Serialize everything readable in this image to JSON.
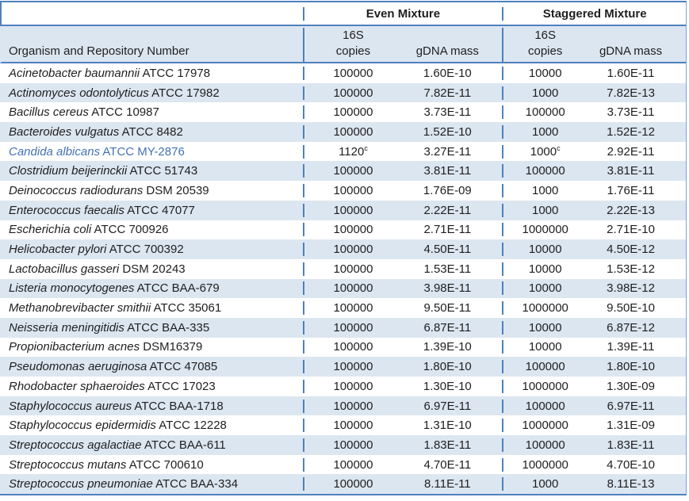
{
  "colors": {
    "border_blue": "#4f81bd",
    "band_blue": "#dce6f1",
    "text": "#1f1f1f",
    "highlight_text": "#4472b4"
  },
  "table": {
    "group_headers": {
      "even": "Even Mixture",
      "staggered": "Staggered Mixture"
    },
    "subheaders": {
      "organism": "Organism and Repository Number",
      "copies_top": "16S",
      "copies_bottom": "copies",
      "gdna": "gDNA mass"
    },
    "rows": [
      {
        "genus_species": "Acinetobacter baumannii",
        "repository": "ATCC 17978",
        "even_copies": "100000",
        "even_sup": "",
        "even_gdna": "1.60E-10",
        "stag_copies": "10000",
        "stag_sup": "",
        "stag_gdna": "1.60E-11",
        "highlight": false
      },
      {
        "genus_species": "Actinomyces odontolyticus",
        "repository": "ATCC 17982",
        "even_copies": "100000",
        "even_sup": "",
        "even_gdna": "7.82E-11",
        "stag_copies": "1000",
        "stag_sup": "",
        "stag_gdna": "7.82E-13",
        "highlight": false
      },
      {
        "genus_species": "Bacillus cereus",
        "repository": "ATCC 10987",
        "even_copies": "100000",
        "even_sup": "",
        "even_gdna": "3.73E-11",
        "stag_copies": "100000",
        "stag_sup": "",
        "stag_gdna": "3.73E-11",
        "highlight": false
      },
      {
        "genus_species": "Bacteroides vulgatus",
        "repository": "ATCC 8482",
        "even_copies": "100000",
        "even_sup": "",
        "even_gdna": "1.52E-10",
        "stag_copies": "1000",
        "stag_sup": "",
        "stag_gdna": "1.52E-12",
        "highlight": false
      },
      {
        "genus_species": "Candida albicans",
        "repository": "ATCC MY-2876",
        "even_copies": "1120",
        "even_sup": "c",
        "even_gdna": "3.27E-11",
        "stag_copies": "1000",
        "stag_sup": "c",
        "stag_gdna": "2.92E-11",
        "highlight": true
      },
      {
        "genus_species": "Clostridium beijerinckii",
        "repository": "ATCC 51743",
        "even_copies": "100000",
        "even_sup": "",
        "even_gdna": "3.81E-11",
        "stag_copies": "100000",
        "stag_sup": "",
        "stag_gdna": "3.81E-11",
        "highlight": false
      },
      {
        "genus_species": "Deinococcus radiodurans",
        "repository": "DSM 20539",
        "even_copies": "100000",
        "even_sup": "",
        "even_gdna": "1.76E-09",
        "stag_copies": "1000",
        "stag_sup": "",
        "stag_gdna": "1.76E-11",
        "highlight": false
      },
      {
        "genus_species": "Enterococcus faecalis",
        "repository": "ATCC 47077",
        "even_copies": "100000",
        "even_sup": "",
        "even_gdna": "2.22E-11",
        "stag_copies": "1000",
        "stag_sup": "",
        "stag_gdna": "2.22E-13",
        "highlight": false
      },
      {
        "genus_species": "Escherichia coli",
        "repository": "ATCC 700926",
        "even_copies": "100000",
        "even_sup": "",
        "even_gdna": "2.71E-11",
        "stag_copies": "1000000",
        "stag_sup": "",
        "stag_gdna": "2.71E-10",
        "highlight": false
      },
      {
        "genus_species": "Helicobacter pylori",
        "repository": "ATCC 700392",
        "even_copies": "100000",
        "even_sup": "",
        "even_gdna": "4.50E-11",
        "stag_copies": "10000",
        "stag_sup": "",
        "stag_gdna": "4.50E-12",
        "highlight": false
      },
      {
        "genus_species": "Lactobacillus gasseri",
        "repository": "DSM 20243",
        "even_copies": "100000",
        "even_sup": "",
        "even_gdna": "1.53E-11",
        "stag_copies": "10000",
        "stag_sup": "",
        "stag_gdna": "1.53E-12",
        "highlight": false
      },
      {
        "genus_species": "Listeria monocytogenes",
        "repository": "ATCC BAA-679",
        "even_copies": "100000",
        "even_sup": "",
        "even_gdna": "3.98E-11",
        "stag_copies": "10000",
        "stag_sup": "",
        "stag_gdna": "3.98E-12",
        "highlight": false
      },
      {
        "genus_species": "Methanobrevibacter smithii",
        "repository": "ATCC 35061",
        "even_copies": "100000",
        "even_sup": "",
        "even_gdna": "9.50E-11",
        "stag_copies": "1000000",
        "stag_sup": "",
        "stag_gdna": "9.50E-10",
        "highlight": false
      },
      {
        "genus_species": "Neisseria meningitidis",
        "repository": "ATCC BAA-335",
        "even_copies": "100000",
        "even_sup": "",
        "even_gdna": "6.87E-11",
        "stag_copies": "10000",
        "stag_sup": "",
        "stag_gdna": "6.87E-12",
        "highlight": false
      },
      {
        "genus_species": "Propionibacterium acnes",
        "repository": "DSM16379",
        "even_copies": "100000",
        "even_sup": "",
        "even_gdna": "1.39E-10",
        "stag_copies": "10000",
        "stag_sup": "",
        "stag_gdna": "1.39E-11",
        "highlight": false
      },
      {
        "genus_species": "Pseudomonas aeruginosa",
        "repository": "ATCC 47085",
        "even_copies": "100000",
        "even_sup": "",
        "even_gdna": "1.80E-10",
        "stag_copies": "100000",
        "stag_sup": "",
        "stag_gdna": "1.80E-10",
        "highlight": false
      },
      {
        "genus_species": "Rhodobacter sphaeroides",
        "repository": "ATCC 17023",
        "even_copies": "100000",
        "even_sup": "",
        "even_gdna": "1.30E-10",
        "stag_copies": "1000000",
        "stag_sup": "",
        "stag_gdna": "1.30E-09",
        "highlight": false
      },
      {
        "genus_species": "Staphylococcus aureus",
        "repository": "ATCC BAA-1718",
        "even_copies": "100000",
        "even_sup": "",
        "even_gdna": "6.97E-11",
        "stag_copies": "100000",
        "stag_sup": "",
        "stag_gdna": "6.97E-11",
        "highlight": false
      },
      {
        "genus_species": "Staphylococcus epidermidis",
        "repository": "ATCC 12228",
        "even_copies": "100000",
        "even_sup": "",
        "even_gdna": "1.31E-10",
        "stag_copies": "1000000",
        "stag_sup": "",
        "stag_gdna": "1.31E-09",
        "highlight": false
      },
      {
        "genus_species": "Streptococcus agalactiae",
        "repository": "ATCC BAA-611",
        "even_copies": "100000",
        "even_sup": "",
        "even_gdna": "1.83E-11",
        "stag_copies": "100000",
        "stag_sup": "",
        "stag_gdna": "1.83E-11",
        "highlight": false
      },
      {
        "genus_species": "Streptococcus mutans",
        "repository": "ATCC 700610",
        "even_copies": "100000",
        "even_sup": "",
        "even_gdna": "4.70E-11",
        "stag_copies": "1000000",
        "stag_sup": "",
        "stag_gdna": "4.70E-10",
        "highlight": false
      },
      {
        "genus_species": "Streptococcus pneumoniae",
        "repository": "ATCC BAA-334",
        "even_copies": "100000",
        "even_sup": "",
        "even_gdna": "8.11E-11",
        "stag_copies": "1000",
        "stag_sup": "",
        "stag_gdna": "8.11E-13",
        "highlight": false
      }
    ]
  }
}
